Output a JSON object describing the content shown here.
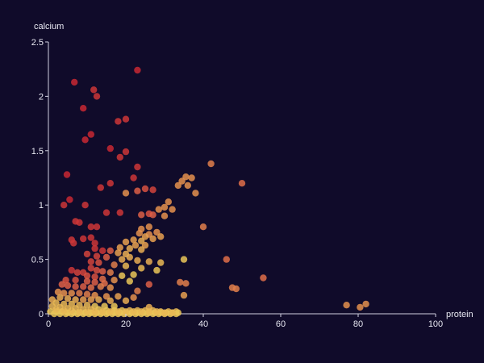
{
  "chart_data": {
    "type": "scatter",
    "title": "",
    "xlabel": "protein",
    "ylabel": "calcium",
    "xlim": [
      0,
      100
    ],
    "ylim": [
      0,
      2.5
    ],
    "x_ticks": [
      0,
      20,
      40,
      60,
      80,
      100
    ],
    "y_ticks": [
      0,
      0.5,
      1,
      1.5,
      2,
      2.5
    ],
    "x_tick_labels": [
      "0",
      "20",
      "40",
      "60",
      "80",
      "100"
    ],
    "y_tick_labels": [
      "0",
      "0.5",
      "1",
      "1.5",
      "2",
      "2.5"
    ],
    "grid": false,
    "colors": {
      "background": "#100b2a",
      "axis": "#cfcfe0",
      "text": "#e8e8f2"
    },
    "points": [
      [
        23,
        2.24,
        0.4
      ],
      [
        6.7,
        2.13,
        0.4
      ],
      [
        11.7,
        2.06,
        0.45
      ],
      [
        12.5,
        2.0,
        0.45
      ],
      [
        9,
        1.89,
        0.4
      ],
      [
        20,
        1.79,
        0.45
      ],
      [
        18,
        1.77,
        0.45
      ],
      [
        11,
        1.65,
        0.4
      ],
      [
        9.5,
        1.6,
        0.4
      ],
      [
        16,
        1.52,
        0.4
      ],
      [
        20,
        1.49,
        0.45
      ],
      [
        18.5,
        1.44,
        0.45
      ],
      [
        23,
        1.35,
        0.45
      ],
      [
        42,
        1.38,
        0.7
      ],
      [
        4.8,
        1.28,
        0.4
      ],
      [
        22,
        1.25,
        0.45
      ],
      [
        35.5,
        1.26,
        0.75
      ],
      [
        37,
        1.25,
        0.75
      ],
      [
        34.5,
        1.22,
        0.75
      ],
      [
        33.5,
        1.18,
        0.75
      ],
      [
        36,
        1.18,
        0.75
      ],
      [
        50,
        1.2,
        0.65
      ],
      [
        13.5,
        1.16,
        0.45
      ],
      [
        16,
        1.2,
        0.45
      ],
      [
        25,
        1.15,
        0.55
      ],
      [
        20,
        1.11,
        0.75
      ],
      [
        23,
        1.13,
        0.6
      ],
      [
        27,
        1.14,
        0.5
      ],
      [
        38,
        1.11,
        0.75
      ],
      [
        5.5,
        1.05,
        0.4
      ],
      [
        4,
        1.0,
        0.45
      ],
      [
        9.5,
        1.0,
        0.45
      ],
      [
        31,
        1.03,
        0.75
      ],
      [
        30,
        0.98,
        0.75
      ],
      [
        28.5,
        0.96,
        0.75
      ],
      [
        32,
        0.96,
        0.75
      ],
      [
        15,
        0.93,
        0.45
      ],
      [
        18.5,
        0.93,
        0.45
      ],
      [
        24,
        0.91,
        0.6
      ],
      [
        26,
        0.92,
        0.55
      ],
      [
        27,
        0.91,
        0.6
      ],
      [
        30,
        0.9,
        0.75
      ],
      [
        7,
        0.85,
        0.45
      ],
      [
        8,
        0.84,
        0.45
      ],
      [
        11,
        0.8,
        0.45
      ],
      [
        12.5,
        0.8,
        0.45
      ],
      [
        40,
        0.8,
        0.7
      ],
      [
        24,
        0.78,
        0.75
      ],
      [
        26,
        0.8,
        0.75
      ],
      [
        23.5,
        0.74,
        0.75
      ],
      [
        26,
        0.73,
        0.75
      ],
      [
        28,
        0.75,
        0.75
      ],
      [
        25,
        0.71,
        0.8
      ],
      [
        27,
        0.69,
        0.8
      ],
      [
        29,
        0.71,
        0.8
      ],
      [
        22,
        0.68,
        0.8
      ],
      [
        24,
        0.67,
        0.85
      ],
      [
        6,
        0.68,
        0.45
      ],
      [
        9,
        0.69,
        0.45
      ],
      [
        11,
        0.7,
        0.45
      ],
      [
        6.5,
        0.65,
        0.45
      ],
      [
        12,
        0.65,
        0.45
      ],
      [
        20,
        0.66,
        0.8
      ],
      [
        22.5,
        0.63,
        0.8
      ],
      [
        25,
        0.63,
        0.8
      ],
      [
        18.5,
        0.61,
        0.8
      ],
      [
        21,
        0.6,
        0.85
      ],
      [
        24,
        0.59,
        0.85
      ],
      [
        12,
        0.6,
        0.45
      ],
      [
        14,
        0.58,
        0.45
      ],
      [
        16,
        0.58,
        0.6
      ],
      [
        18,
        0.56,
        0.8
      ],
      [
        20,
        0.55,
        0.85
      ],
      [
        10,
        0.55,
        0.5
      ],
      [
        12.5,
        0.53,
        0.5
      ],
      [
        15,
        0.52,
        0.6
      ],
      [
        19,
        0.5,
        0.85
      ],
      [
        21,
        0.52,
        0.85
      ],
      [
        23,
        0.49,
        0.85
      ],
      [
        26,
        0.48,
        0.85
      ],
      [
        29,
        0.47,
        0.9
      ],
      [
        35,
        0.5,
        0.95
      ],
      [
        46,
        0.5,
        0.65
      ],
      [
        11,
        0.48,
        0.5
      ],
      [
        13,
        0.47,
        0.55
      ],
      [
        17,
        0.45,
        0.7
      ],
      [
        20,
        0.44,
        0.9
      ],
      [
        24,
        0.42,
        0.9
      ],
      [
        28,
        0.4,
        0.95
      ],
      [
        11,
        0.42,
        0.5
      ],
      [
        12.5,
        0.4,
        0.55
      ],
      [
        14,
        0.39,
        0.6
      ],
      [
        6,
        0.4,
        0.45
      ],
      [
        7.5,
        0.38,
        0.5
      ],
      [
        9,
        0.38,
        0.5
      ],
      [
        16,
        0.38,
        0.7
      ],
      [
        19,
        0.35,
        0.95
      ],
      [
        22,
        0.36,
        0.95
      ],
      [
        10,
        0.35,
        0.55
      ],
      [
        12,
        0.34,
        0.55
      ],
      [
        55.5,
        0.33,
        0.65
      ],
      [
        14,
        0.32,
        0.65
      ],
      [
        17,
        0.31,
        0.75
      ],
      [
        21,
        0.3,
        0.95
      ],
      [
        4.5,
        0.31,
        0.55
      ],
      [
        7,
        0.31,
        0.55
      ],
      [
        10,
        0.3,
        0.6
      ],
      [
        12,
        0.29,
        0.6
      ],
      [
        14.5,
        0.28,
        0.65
      ],
      [
        34,
        0.29,
        0.7
      ],
      [
        35.5,
        0.28,
        0.7
      ],
      [
        26,
        0.27,
        0.6
      ],
      [
        3.5,
        0.27,
        0.6
      ],
      [
        5,
        0.26,
        0.6
      ],
      [
        7,
        0.25,
        0.6
      ],
      [
        9,
        0.25,
        0.6
      ],
      [
        11,
        0.24,
        0.65
      ],
      [
        13.5,
        0.25,
        0.7
      ],
      [
        16,
        0.24,
        0.75
      ],
      [
        47.5,
        0.24,
        0.7
      ],
      [
        48.5,
        0.23,
        0.7
      ],
      [
        23,
        0.21,
        0.7
      ],
      [
        2.5,
        0.2,
        0.75
      ],
      [
        4,
        0.19,
        0.75
      ],
      [
        6,
        0.19,
        0.75
      ],
      [
        8,
        0.19,
        0.7
      ],
      [
        10,
        0.18,
        0.7
      ],
      [
        12,
        0.17,
        0.75
      ],
      [
        15,
        0.16,
        0.75
      ],
      [
        18,
        0.16,
        0.8
      ],
      [
        22,
        0.15,
        0.75
      ],
      [
        35,
        0.17,
        0.8
      ],
      [
        3,
        0.15,
        0.85
      ],
      [
        5,
        0.14,
        0.85
      ],
      [
        7,
        0.13,
        0.85
      ],
      [
        9,
        0.13,
        0.8
      ],
      [
        11,
        0.13,
        0.8
      ],
      [
        13,
        0.13,
        0.85
      ],
      [
        16,
        0.12,
        0.85
      ],
      [
        20,
        0.12,
        0.85
      ],
      [
        1,
        0.13,
        0.85
      ],
      [
        2,
        0.1,
        0.9
      ],
      [
        4,
        0.09,
        0.9
      ],
      [
        6,
        0.09,
        0.9
      ],
      [
        8,
        0.08,
        0.9
      ],
      [
        10,
        0.08,
        0.9
      ],
      [
        12,
        0.07,
        0.95
      ],
      [
        14.5,
        0.07,
        0.95
      ],
      [
        17,
        0.07,
        0.95
      ],
      [
        26,
        0.06,
        0.85
      ],
      [
        82,
        0.09,
        0.75
      ],
      [
        77,
        0.08,
        0.75
      ],
      [
        80.5,
        0.06,
        0.75
      ],
      [
        1,
        0.07,
        0.9
      ],
      [
        3,
        0.06,
        0.9
      ],
      [
        5,
        0.05,
        0.9
      ],
      [
        7,
        0.05,
        0.9
      ],
      [
        9,
        0.04,
        0.9
      ],
      [
        11,
        0.04,
        0.9
      ],
      [
        13,
        0.04,
        0.95
      ],
      [
        15,
        0.03,
        0.95
      ],
      [
        17,
        0.03,
        0.95
      ],
      [
        19,
        0.03,
        0.95
      ],
      [
        21,
        0.03,
        0.9
      ],
      [
        23,
        0.03,
        0.9
      ],
      [
        25,
        0.03,
        0.9
      ],
      [
        27,
        0.03,
        0.9
      ],
      [
        29,
        0.02,
        0.9
      ],
      [
        31,
        0.02,
        0.9
      ],
      [
        33,
        0.02,
        0.9
      ],
      [
        0.5,
        0.02,
        0.95
      ],
      [
        2,
        0.02,
        0.95
      ],
      [
        3.5,
        0.02,
        0.95
      ],
      [
        5,
        0.01,
        0.95
      ],
      [
        6.5,
        0.01,
        0.95
      ],
      [
        8,
        0.01,
        0.95
      ],
      [
        9.5,
        0.01,
        0.95
      ],
      [
        11,
        0.01,
        0.95
      ],
      [
        12.5,
        0.01,
        0.95
      ],
      [
        14,
        0.01,
        0.95
      ],
      [
        15.5,
        0.01,
        0.95
      ],
      [
        17,
        0.01,
        0.95
      ],
      [
        18.5,
        0.01,
        0.95
      ],
      [
        20,
        0.01,
        0.95
      ],
      [
        21.5,
        0.01,
        0.95
      ],
      [
        23,
        0.01,
        0.95
      ],
      [
        24.5,
        0.01,
        0.95
      ],
      [
        26,
        0.01,
        0.95
      ],
      [
        27.5,
        0.01,
        0.95
      ],
      [
        29,
        0.01,
        0.95
      ],
      [
        30.5,
        0.01,
        0.95
      ],
      [
        32,
        0.01,
        0.95
      ],
      [
        33.5,
        0.01,
        0.95
      ],
      [
        1.5,
        0.0,
        0.95
      ],
      [
        3,
        0.0,
        0.95
      ],
      [
        4.5,
        0.0,
        0.95
      ],
      [
        6,
        0.0,
        0.95
      ],
      [
        7.5,
        0.0,
        0.95
      ],
      [
        9,
        0.0,
        0.95
      ],
      [
        10.5,
        0.0,
        0.95
      ],
      [
        12,
        0.0,
        0.95
      ],
      [
        13.5,
        0.0,
        0.95
      ],
      [
        15,
        0.0,
        0.95
      ],
      [
        16.5,
        0.0,
        0.95
      ],
      [
        18,
        0.0,
        0.95
      ],
      [
        19.5,
        0.0,
        0.95
      ],
      [
        21,
        0.0,
        0.95
      ],
      [
        22.5,
        0.0,
        0.95
      ],
      [
        24,
        0.0,
        0.95
      ],
      [
        25.5,
        0.0,
        0.95
      ],
      [
        27,
        0.0,
        0.95
      ],
      [
        28.5,
        0.0,
        0.95
      ],
      [
        30,
        0.0,
        0.95
      ],
      [
        31.5,
        0.0,
        0.95
      ],
      [
        33,
        0.0,
        0.95
      ],
      [
        2,
        0.04,
        0.9
      ],
      [
        4,
        0.03,
        0.9
      ],
      [
        6,
        0.03,
        0.9
      ],
      [
        8,
        0.02,
        0.9
      ],
      [
        10,
        0.02,
        0.9
      ],
      [
        12,
        0.02,
        0.9
      ],
      [
        14,
        0.02,
        0.9
      ],
      [
        16,
        0.02,
        0.9
      ],
      [
        18,
        0.02,
        0.9
      ],
      [
        20,
        0.02,
        0.9
      ],
      [
        22,
        0.02,
        0.9
      ],
      [
        24,
        0.02,
        0.9
      ],
      [
        26,
        0.02,
        0.9
      ],
      [
        28,
        0.02,
        0.9
      ],
      [
        30,
        0.01,
        0.9
      ],
      [
        32,
        0.01,
        0.9
      ]
    ]
  }
}
